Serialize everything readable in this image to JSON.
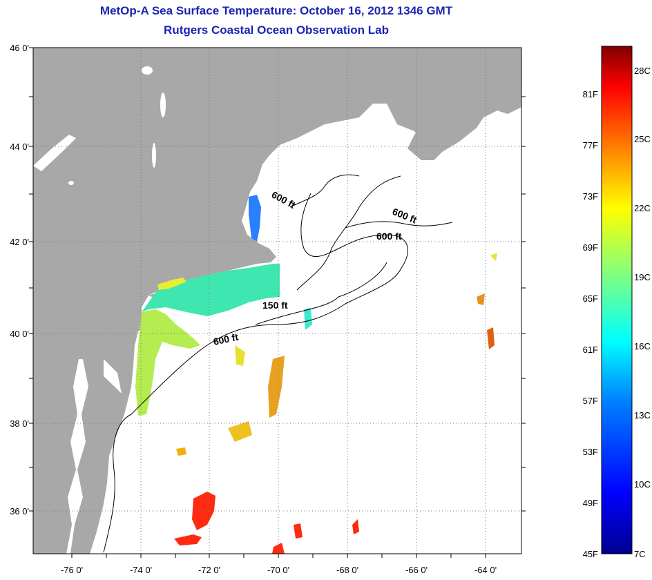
{
  "title": "MetOp-A Sea Surface Temperature:  October 16, 2012 1346 GMT",
  "subtitle": "Rutgers Coastal Ocean Observation Lab",
  "lat_labels": [
    "46 0'",
    "44 0'",
    "42 0'",
    "40 0'",
    "38 0'",
    "36 0'"
  ],
  "lon_labels": [
    "-76 0'",
    "-74 0'",
    "-72 0'",
    "-70 0'",
    "-68 0'",
    "-66 0'",
    "-64 0'"
  ],
  "contour_labels": {
    "label_a": "600 ft",
    "label_b": "600 ft",
    "label_c": "600 ft",
    "label_d": "150 ft",
    "label_e": "600 ft"
  },
  "colorbar": {
    "fahrenheit": [
      "81F",
      "77F",
      "73F",
      "69F",
      "65F",
      "61F",
      "57F",
      "53F",
      "49F",
      "45F"
    ],
    "celsius": [
      "28C",
      "25C",
      "22C",
      "19C",
      "16C",
      "13C",
      "10C",
      "7C"
    ]
  },
  "colors": {
    "title": "#1a24b4",
    "land": "#a8a8a8",
    "ocean": "#ffffff"
  }
}
